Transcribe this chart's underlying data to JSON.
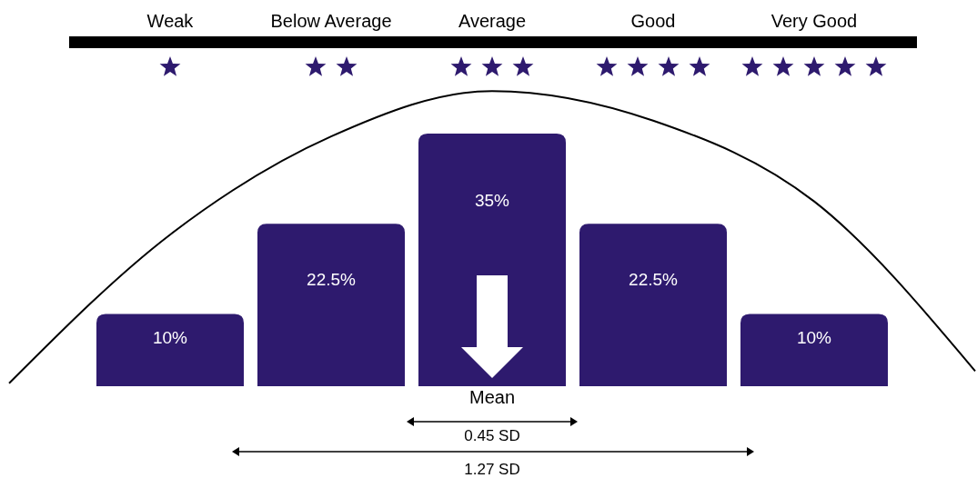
{
  "chart_data": {
    "type": "bar",
    "categories": [
      null,
      "Weak",
      "Below Average",
      "Average",
      "Good",
      "Very Good",
      null
    ],
    "series": [
      {
        "color": "#2e1a6e",
        "values": [
          null,
          10,
          22.5,
          35,
          22.5,
          10,
          null
        ],
        "value_labels": [
          null,
          "10%",
          "22.5%",
          "35%",
          "22.5%",
          "10%",
          null
        ]
      },
      {
        "type": "line",
        "color": "#000000",
        "values": [
          0.4,
          21,
          34.6,
          40.9,
          36.8,
          25.6,
          2.1
        ]
      }
    ],
    "annotations": [
      "Mean",
      "0.45 SD",
      "1.27 SD"
    ]
  }
}
